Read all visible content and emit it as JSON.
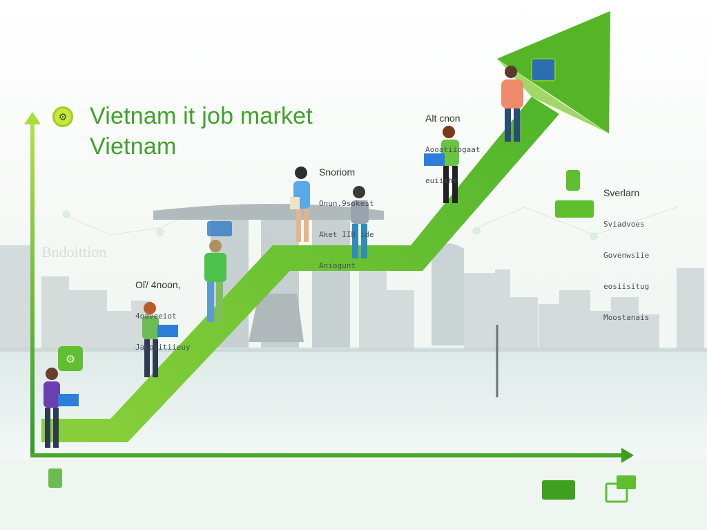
{
  "title": {
    "line1": "Vietnam it job market",
    "line2": "Vietnam"
  },
  "notes": [
    {
      "heading": "Oľ/ 4noon,",
      "lines": [
        "4oaveeiot",
        "Jacoiitiieuy"
      ]
    },
    {
      "heading": "Snoriom",
      "lines": [
        "Onun.9sokeit",
        "Aket IIB ide",
        "Aniogunt"
      ]
    },
    {
      "heading": "Alt cnon",
      "lines": [
        "Aooatiiogaat",
        "euiishs"
      ]
    },
    {
      "heading": "Sverlarn",
      "lines": [
        "Sviadvoes",
        "Govenwsiie",
        "eosiisitug",
        "Moostanais"
      ]
    }
  ],
  "skyline_caption": "Bndoittion",
  "colors": {
    "accent": "#7cc72a",
    "accent_dark": "#3f9f1e",
    "arrow_tip": "#55b527"
  },
  "icons": [
    "badge-icon",
    "laptop-icon",
    "code-icon",
    "chart-icon",
    "plant-icon",
    "robot-icon",
    "phone-icon"
  ]
}
